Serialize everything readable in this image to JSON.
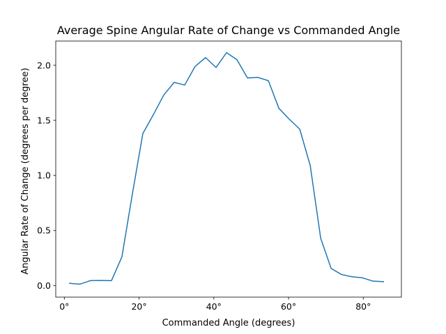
{
  "chart_data": {
    "type": "line",
    "title": "Average Spine Angular Rate of Change vs Commanded Angle",
    "xlabel": "Commanded Angle (degrees)",
    "ylabel": "Angular Rate of Change (degrees per degree)",
    "xlim": [
      -2.3,
      90.2
    ],
    "ylim": [
      -0.105,
      2.22
    ],
    "xticks": [
      0,
      20,
      40,
      60,
      80
    ],
    "xtick_labels": [
      "0°",
      "20°",
      "40°",
      "60°",
      "80°"
    ],
    "yticks": [
      0.0,
      0.5,
      1.0,
      1.5,
      2.0
    ],
    "ytick_labels": [
      "0.0",
      "0.5",
      "1.0",
      "1.5",
      "2.0"
    ],
    "grid": false,
    "series": [
      {
        "color": "#1f77b4",
        "x": [
          1.4,
          4.2,
          7.0,
          9.8,
          12.6,
          15.4,
          18.2,
          21.0,
          23.8,
          26.6,
          29.4,
          32.2,
          35.0,
          37.8,
          40.6,
          43.4,
          46.2,
          49.0,
          51.8,
          54.6,
          57.4,
          60.2,
          63.0,
          65.8,
          68.6,
          71.4,
          74.2,
          77.0,
          79.8,
          82.6,
          85.4
        ],
        "y": [
          0.02,
          0.013,
          0.045,
          0.047,
          0.044,
          0.26,
          0.83,
          1.38,
          1.55,
          1.73,
          1.845,
          1.82,
          1.99,
          2.07,
          1.98,
          2.115,
          2.05,
          1.885,
          1.89,
          1.86,
          1.61,
          1.51,
          1.42,
          1.09,
          0.43,
          0.155,
          0.1,
          0.08,
          0.07,
          0.04,
          0.035
        ]
      }
    ]
  }
}
